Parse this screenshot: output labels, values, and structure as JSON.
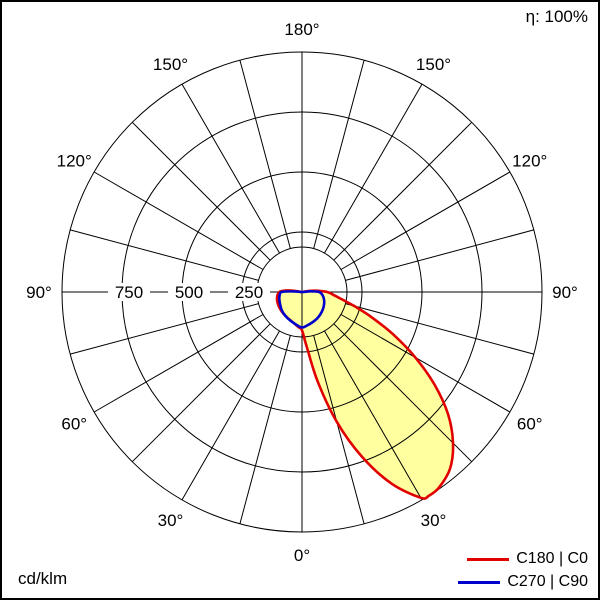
{
  "page": {
    "efficiency": "η: 100%",
    "unit": "cd/klm"
  },
  "chart_data": {
    "type": "polar",
    "subtype": "photometric-intensity-distribution",
    "unit": "cd/klm",
    "efficiency": "η: 100%",
    "convention": "gamma 0° = nadir (bottom of diagram); positive gamma = right half (C0 / C90), negative gamma = left half (C180 / C270); values in cd/klm",
    "radial_axis": {
      "max": 1000,
      "ticks": [
        250,
        500,
        750
      ],
      "tick_labels": [
        "250",
        "500",
        "750"
      ]
    },
    "angle_grid_step_deg": 15,
    "angle_labels": [
      {
        "deg": 0,
        "label": "0°"
      },
      {
        "deg": 30,
        "label": "30°"
      },
      {
        "deg": 60,
        "label": "60°"
      },
      {
        "deg": 90,
        "label": "90°"
      },
      {
        "deg": 120,
        "label": "120°"
      },
      {
        "deg": 150,
        "label": "150°"
      },
      {
        "deg": 180,
        "label": "180°"
      }
    ],
    "series": [
      {
        "name": "C180 | C0",
        "color": "#e10000",
        "fill": "#ffffa0",
        "points_gamma_deg_value": [
          [
            -105,
            0
          ],
          [
            -100,
            25
          ],
          [
            -95,
            70
          ],
          [
            -90,
            95
          ],
          [
            -80,
            105
          ],
          [
            -70,
            110
          ],
          [
            -60,
            113
          ],
          [
            -50,
            116
          ],
          [
            -40,
            119
          ],
          [
            -30,
            123
          ],
          [
            -20,
            129
          ],
          [
            -10,
            140
          ],
          [
            -5,
            148
          ],
          [
            0,
            160
          ],
          [
            5,
            230
          ],
          [
            10,
            380
          ],
          [
            15,
            560
          ],
          [
            20,
            730
          ],
          [
            25,
            880
          ],
          [
            30,
            990
          ],
          [
            32,
            1000
          ],
          [
            35,
            995
          ],
          [
            40,
            960
          ],
          [
            45,
            890
          ],
          [
            50,
            795
          ],
          [
            55,
            675
          ],
          [
            60,
            545
          ],
          [
            65,
            420
          ],
          [
            70,
            310
          ],
          [
            75,
            225
          ],
          [
            80,
            165
          ],
          [
            85,
            130
          ],
          [
            90,
            105
          ],
          [
            95,
            60
          ],
          [
            100,
            25
          ],
          [
            105,
            0
          ]
        ]
      },
      {
        "name": "C270 | C90",
        "color": "#0000cd",
        "fill": "none",
        "points_gamma_deg_value": [
          [
            -100,
            0
          ],
          [
            -95,
            30
          ],
          [
            -90,
            85
          ],
          [
            -80,
            95
          ],
          [
            -70,
            100
          ],
          [
            -60,
            105
          ],
          [
            -50,
            112
          ],
          [
            -40,
            118
          ],
          [
            -30,
            124
          ],
          [
            -20,
            130
          ],
          [
            -10,
            138
          ],
          [
            0,
            148
          ],
          [
            10,
            140
          ],
          [
            20,
            133
          ],
          [
            30,
            127
          ],
          [
            40,
            120
          ],
          [
            50,
            113
          ],
          [
            60,
            106
          ],
          [
            70,
            98
          ],
          [
            80,
            88
          ],
          [
            90,
            72
          ],
          [
            95,
            35
          ],
          [
            100,
            0
          ]
        ]
      }
    ]
  }
}
